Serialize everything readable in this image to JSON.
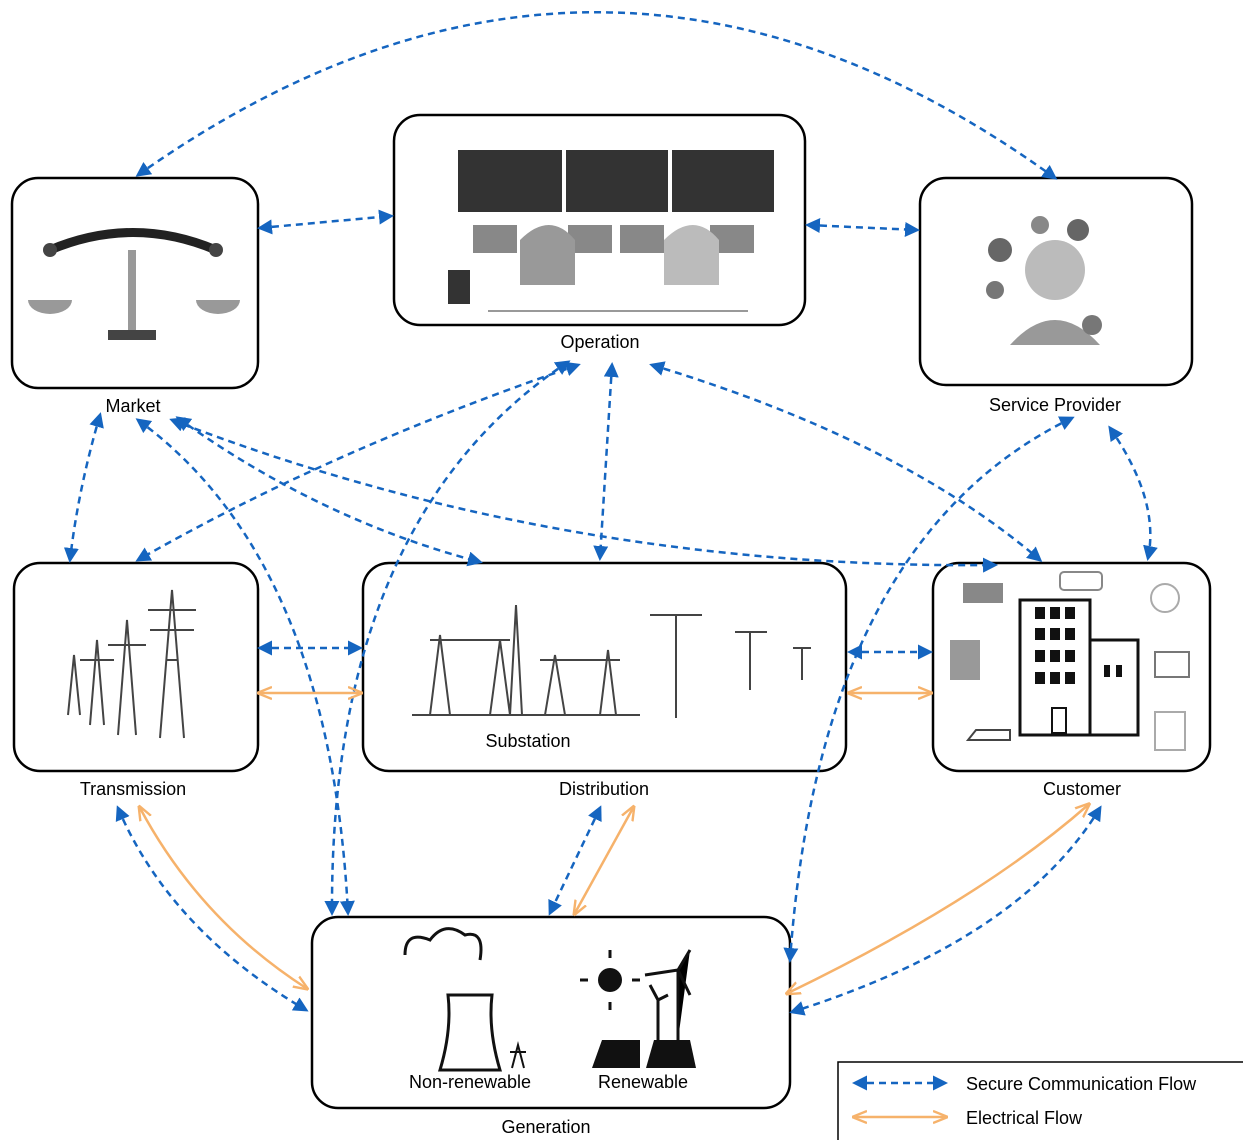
{
  "nodes": [
    {
      "label": "Market"
    },
    {
      "label": "Operation"
    },
    {
      "label": "Service Provider"
    },
    {
      "label": "Transmission"
    },
    {
      "label": "Distribution"
    },
    {
      "label": "Customer"
    },
    {
      "label": "Generation"
    }
  ],
  "inner_labels": {
    "substation": "Substation",
    "non_renewable": "Non-renewable",
    "renewable": "Renewable"
  },
  "legend": [
    {
      "label": "Secure Communication Flow"
    },
    {
      "label": "Electrical Flow"
    }
  ]
}
